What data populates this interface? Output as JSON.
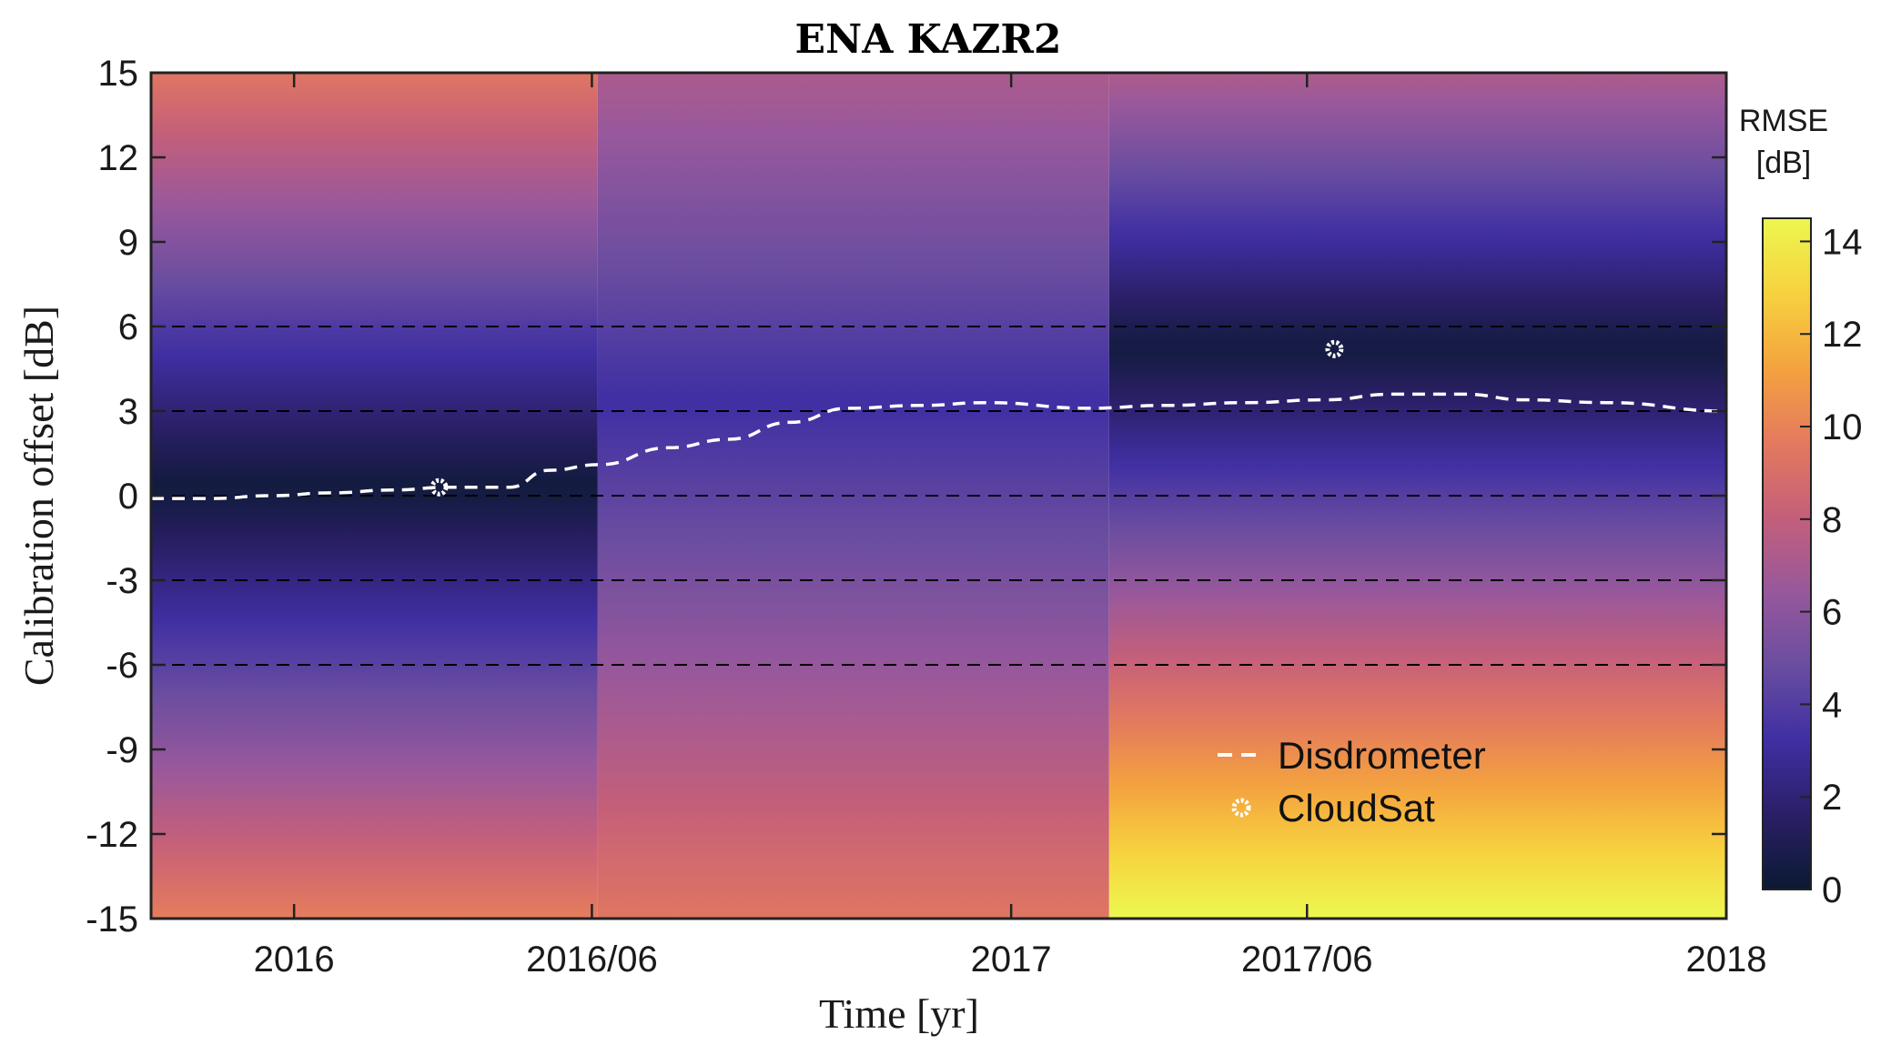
{
  "chart_data": {
    "type": "heatmap",
    "title": "ENA KAZR2",
    "xlabel": "Time [yr]",
    "ylabel": "Calibration offset [dB]",
    "x_axis": {
      "type": "date",
      "range": [
        "2015-10-20",
        "2018-01-01"
      ],
      "ticks": [
        {
          "date": "2016-01-01",
          "label": "2016"
        },
        {
          "date": "2016-06-01",
          "label": "2016/06"
        },
        {
          "date": "2017-01-01",
          "label": "2017"
        },
        {
          "date": "2017-06-01",
          "label": "2017/06"
        },
        {
          "date": "2018-01-01",
          "label": "2018"
        }
      ]
    },
    "y_axis": {
      "range": [
        -15,
        15
      ],
      "ticks": [
        15,
        12,
        9,
        6,
        3,
        0,
        -3,
        -6,
        -9,
        -12,
        -15
      ],
      "tick_labels": [
        "15",
        "12",
        "9",
        "6",
        "3",
        "0",
        "-3",
        "-6",
        "-9",
        "-12",
        "-15"
      ]
    },
    "reference_lines": [
      6,
      3,
      0,
      -3,
      -6
    ],
    "colorbar": {
      "title_lines": [
        "RMSE",
        "[dB]"
      ],
      "range": [
        0,
        14.5
      ],
      "ticks": [
        0,
        2,
        4,
        6,
        8,
        10,
        12,
        14
      ],
      "tick_labels": [
        "0",
        "2",
        "4",
        "6",
        "8",
        "10",
        "12",
        "14"
      ],
      "colormap": [
        "#0b1a33",
        "#2a1f66",
        "#3f2fa3",
        "#6a4da0",
        "#98589c",
        "#c45f7a",
        "#e47a5e",
        "#f4a33f",
        "#f7d23f",
        "#ecf74f"
      ]
    },
    "periods": [
      {
        "start": "2015-10-20",
        "end": "2016-06-04",
        "best_offset": 0.3,
        "rmse_at_best": 0.3,
        "rmse_slope": 0.62
      },
      {
        "start": "2016-06-04",
        "end": "2017-02-20",
        "best_offset": 3.3,
        "rmse_at_best": 3.2,
        "rmse_slope": 0.34
      },
      {
        "start": "2017-02-20",
        "end": "2018-01-01",
        "best_offset": 5.2,
        "rmse_at_best": 0.4,
        "rmse_slope": 0.7
      }
    ],
    "series": [
      {
        "name": "Disdrometer",
        "style": "dashed-line",
        "color": "#ffffff",
        "points": [
          {
            "x": "2015-10-20",
            "y": -0.1
          },
          {
            "x": "2015-11-20",
            "y": -0.1
          },
          {
            "x": "2015-12-20",
            "y": 0.0
          },
          {
            "x": "2016-01-20",
            "y": 0.1
          },
          {
            "x": "2016-02-20",
            "y": 0.2
          },
          {
            "x": "2016-03-20",
            "y": 0.3
          },
          {
            "x": "2016-04-20",
            "y": 0.3
          },
          {
            "x": "2016-05-10",
            "y": 0.9
          },
          {
            "x": "2016-06-05",
            "y": 1.1
          },
          {
            "x": "2016-07-10",
            "y": 1.7
          },
          {
            "x": "2016-08-10",
            "y": 2.0
          },
          {
            "x": "2016-09-10",
            "y": 2.6
          },
          {
            "x": "2016-10-10",
            "y": 3.1
          },
          {
            "x": "2016-11-15",
            "y": 3.2
          },
          {
            "x": "2016-12-20",
            "y": 3.3
          },
          {
            "x": "2017-02-10",
            "y": 3.1
          },
          {
            "x": "2017-03-20",
            "y": 3.2
          },
          {
            "x": "2017-05-01",
            "y": 3.3
          },
          {
            "x": "2017-06-10",
            "y": 3.4
          },
          {
            "x": "2017-07-15",
            "y": 3.6
          },
          {
            "x": "2017-08-20",
            "y": 3.6
          },
          {
            "x": "2017-09-20",
            "y": 3.4
          },
          {
            "x": "2017-11-01",
            "y": 3.3
          },
          {
            "x": "2018-01-01",
            "y": 3.0
          }
        ]
      },
      {
        "name": "CloudSat",
        "style": "marker",
        "color": "#ffffff",
        "points": [
          {
            "x": "2016-03-15",
            "y": 0.3
          },
          {
            "x": "2017-06-15",
            "y": 5.2
          }
        ]
      }
    ],
    "legend": {
      "placement": "bottom-right",
      "entries": [
        "Disdrometer",
        "CloudSat"
      ]
    },
    "grid": false
  }
}
